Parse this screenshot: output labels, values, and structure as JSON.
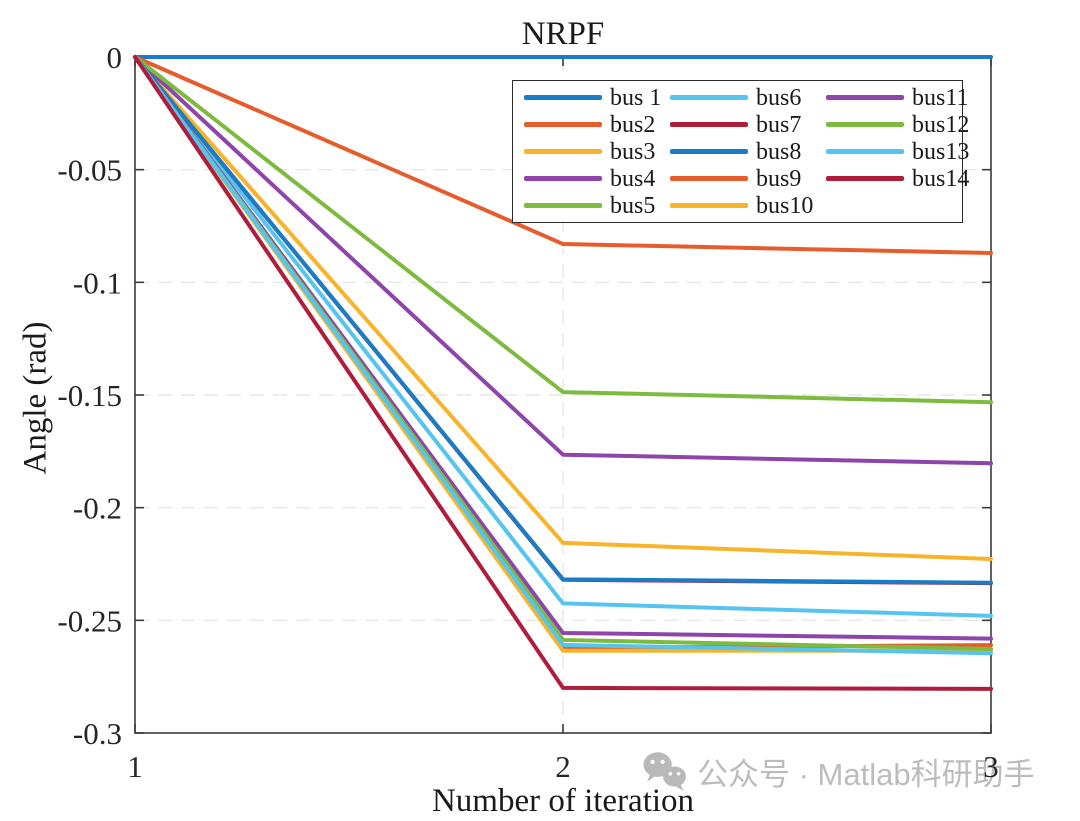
{
  "chart_data": {
    "type": "line",
    "title": "NRPF",
    "xlabel": "Number of iteration",
    "ylabel": "Angle (rad)",
    "x": [
      1,
      2,
      3
    ],
    "xlim": [
      1,
      3
    ],
    "ylim": [
      -0.3,
      0
    ],
    "x_ticks": [
      1,
      2,
      3
    ],
    "x_tick_labels": [
      "1",
      "2",
      "3"
    ],
    "y_ticks": [
      0,
      -0.05,
      -0.1,
      -0.15,
      -0.2,
      -0.25,
      -0.3
    ],
    "y_tick_labels": [
      "0",
      "-0.05",
      "-0.1",
      "-0.15",
      "-0.2",
      "-0.25",
      "-0.3"
    ],
    "grid": "dashed-both-axes",
    "legend_position": "inside-top-center-3-columns",
    "line_width": 4,
    "series": [
      {
        "name": "bus 1",
        "color": "#1a7cc4",
        "values": [
          0,
          0,
          0
        ]
      },
      {
        "name": "bus2",
        "color": "#e55d2c",
        "values": [
          0,
          -0.083,
          -0.087
        ]
      },
      {
        "name": "bus3",
        "color": "#f7b42a",
        "values": [
          0,
          -0.2156,
          -0.2228
        ]
      },
      {
        "name": "bus4",
        "color": "#8e44a8",
        "values": [
          0,
          -0.1765,
          -0.1803
        ]
      },
      {
        "name": "bus5",
        "color": "#7dbb40",
        "values": [
          0,
          -0.1487,
          -0.1532
        ]
      },
      {
        "name": "bus6",
        "color": "#55c5f0",
        "values": [
          0,
          -0.2425,
          -0.248
        ]
      },
      {
        "name": "bus7",
        "color": "#b01d3b",
        "values": [
          0,
          -0.232,
          -0.2335
        ]
      },
      {
        "name": "bus8",
        "color": "#1a7cc4",
        "values": [
          0,
          -0.2318,
          -0.2333
        ]
      },
      {
        "name": "bus9",
        "color": "#e55d2c",
        "values": [
          0,
          -0.2622,
          -0.261
        ]
      },
      {
        "name": "bus10",
        "color": "#f7b42a",
        "values": [
          0,
          -0.2635,
          -0.2635
        ]
      },
      {
        "name": "bus11",
        "color": "#8e44a8",
        "values": [
          0,
          -0.2556,
          -0.2581
        ]
      },
      {
        "name": "bus12",
        "color": "#7dbb40",
        "values": [
          0,
          -0.2587,
          -0.2627
        ]
      },
      {
        "name": "bus13",
        "color": "#55c5f0",
        "values": [
          0,
          -0.2609,
          -0.2646
        ]
      },
      {
        "name": "bus14",
        "color": "#b01d3b",
        "values": [
          0,
          -0.28,
          -0.2804
        ]
      }
    ]
  },
  "watermark": {
    "icon": "wechat-icon",
    "text": "公众号 · Matlab科研助手",
    "color": "#bcbcbc"
  }
}
